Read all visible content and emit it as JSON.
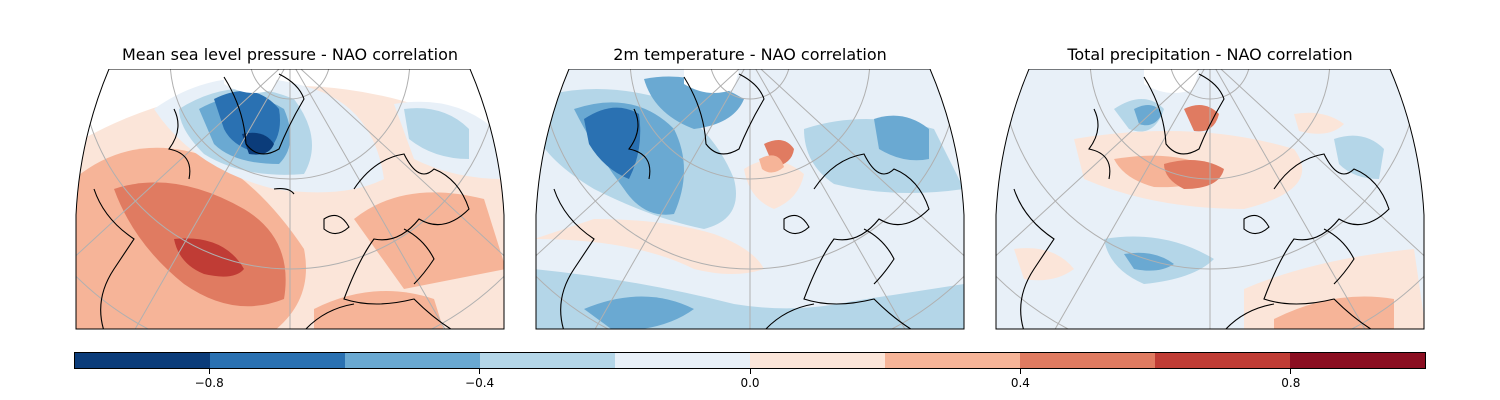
{
  "figure": {
    "panels": [
      {
        "id": "mslp",
        "title": "Mean sea level pressure - NAO correlation"
      },
      {
        "id": "t2m",
        "title": "2m temperature - NAO correlation"
      },
      {
        "id": "precip",
        "title": "Total precipitation - NAO correlation"
      }
    ]
  },
  "chart_data": {
    "type": "heatmap",
    "projection": "polar conic map sector, North Atlantic / Europe",
    "colormap": "RdBu_r",
    "levels": [
      -1.0,
      -0.8,
      -0.6,
      -0.4,
      -0.2,
      0.0,
      0.2,
      0.4,
      0.6,
      0.8,
      1.0
    ],
    "colors": [
      "#0b3c7a",
      "#2a71b2",
      "#6aa9d2",
      "#b4d6e8",
      "#e8f0f8",
      "#fbe5d9",
      "#f6b498",
      "#e07b61",
      "#c03c35",
      "#8b0e21"
    ],
    "colorbar": {
      "orientation": "horizontal",
      "ticks": [
        -0.8,
        -0.4,
        0.0,
        0.4,
        0.8
      ],
      "tick_labels": [
        "−0.8",
        "−0.4",
        "0.0",
        "0.4",
        "0.8"
      ]
    }
  }
}
